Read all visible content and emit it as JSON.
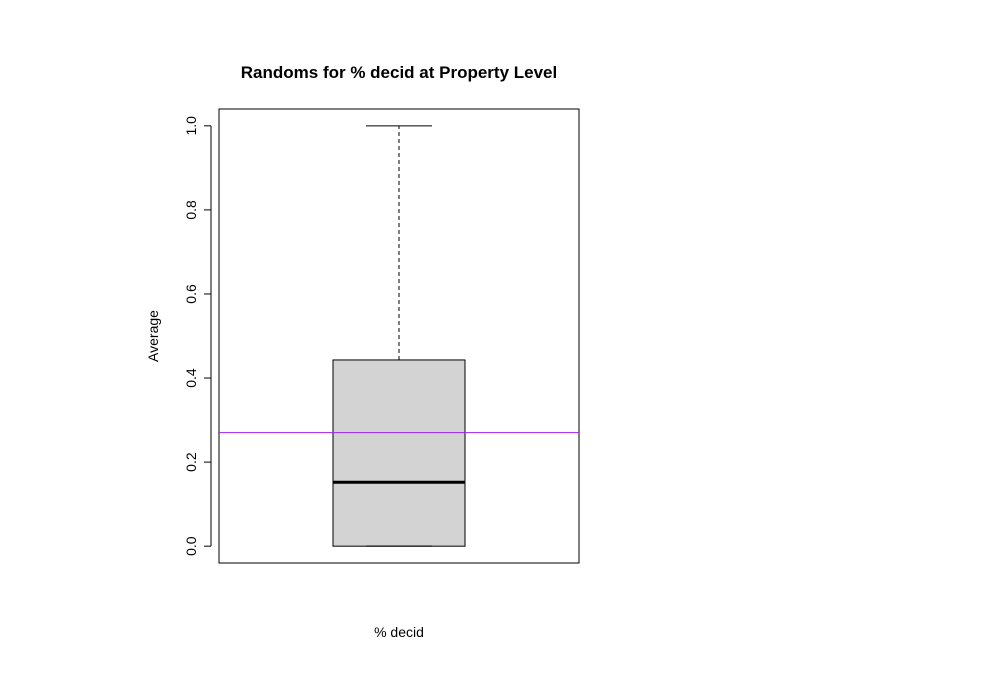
{
  "chart_data": {
    "type": "box",
    "title": "Randoms for % decid at Property Level",
    "xlabel": "% decid",
    "ylabel": "Average",
    "ylim": [
      -0.04,
      1.04
    ],
    "yticks": [
      0.0,
      0.2,
      0.4,
      0.6,
      0.8,
      1.0
    ],
    "ytick_labels": [
      "0.0",
      "0.2",
      "0.4",
      "0.6",
      "0.8",
      "1.0"
    ],
    "box": {
      "min": 0.0,
      "q1": 0.0,
      "median": 0.152,
      "q3": 0.443,
      "max": 1.0
    },
    "reference_line": {
      "y": 0.27
    },
    "colors": {
      "box_fill": "#d3d3d3",
      "reference_line": "#a020f0",
      "stroke": "#000000"
    },
    "grid": false
  }
}
